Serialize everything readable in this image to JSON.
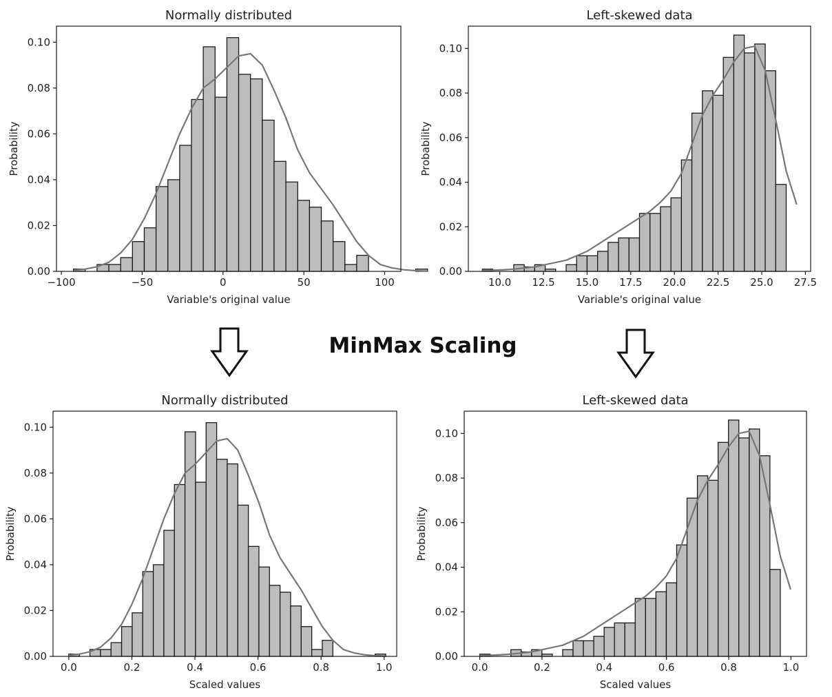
{
  "center_label": "MinMax Scaling",
  "colors": {
    "bar_fill": "#bdbdbd",
    "bar_edge": "#1a1a1a",
    "kde_line": "#777777",
    "axes": "#1a1a1a"
  },
  "chart_data": [
    {
      "type": "bar",
      "title": "Normally distributed",
      "xlabel": "Variable's original value",
      "ylabel": "Probability",
      "xlim": [
        -103,
        110
      ],
      "ylim": [
        0,
        0.107
      ],
      "xticks": [
        -100,
        -50,
        0,
        50,
        100
      ],
      "xtick_labels": [
        "−100",
        "−50",
        "0",
        "50",
        "100"
      ],
      "yticks": [
        0.0,
        0.02,
        0.04,
        0.06,
        0.08,
        0.1
      ],
      "ytick_labels": [
        "0.00",
        "0.02",
        "0.04",
        "0.06",
        "0.08",
        "0.10"
      ],
      "bin_start": -92.5,
      "bin_width": 7.3,
      "values": [
        0.001,
        0.0,
        0.003,
        0.003,
        0.006,
        0.013,
        0.019,
        0.037,
        0.04,
        0.055,
        0.075,
        0.098,
        0.076,
        0.102,
        0.086,
        0.084,
        0.066,
        0.048,
        0.039,
        0.031,
        0.028,
        0.022,
        0.013,
        0.003,
        0.007,
        0.0,
        0.0,
        0.0,
        0.0,
        0.001
      ],
      "kde": [
        0.0005,
        0.001,
        0.002,
        0.004,
        0.008,
        0.014,
        0.023,
        0.034,
        0.047,
        0.06,
        0.071,
        0.08,
        0.084,
        0.089,
        0.094,
        0.095,
        0.09,
        0.079,
        0.067,
        0.053,
        0.043,
        0.036,
        0.029,
        0.021,
        0.013,
        0.007,
        0.003,
        0.0015,
        0.0007,
        0.0003,
        0.0001
      ],
      "grid": false
    },
    {
      "type": "bar",
      "title": "Left-skewed data",
      "xlabel": "Variable's original value",
      "ylabel": "Probability",
      "xlim": [
        8.2,
        27.8
      ],
      "ylim": [
        0,
        0.11
      ],
      "xticks": [
        10.0,
        12.5,
        15.0,
        17.5,
        20.0,
        22.5,
        25.0,
        27.5
      ],
      "xtick_labels": [
        "10.0",
        "12.5",
        "15.0",
        "17.5",
        "20.0",
        "22.5",
        "25.0",
        "27.5"
      ],
      "yticks": [
        0.0,
        0.02,
        0.04,
        0.06,
        0.08,
        0.1
      ],
      "ytick_labels": [
        "0.00",
        "0.02",
        "0.04",
        "0.06",
        "0.08",
        "0.10"
      ],
      "bin_start": 9.0,
      "bin_width": 0.6,
      "values": [
        0.001,
        0.0,
        0.0,
        0.003,
        0.002,
        0.003,
        0.001,
        0.0,
        0.003,
        0.007,
        0.007,
        0.009,
        0.013,
        0.015,
        0.015,
        0.026,
        0.026,
        0.029,
        0.033,
        0.05,
        0.071,
        0.081,
        0.079,
        0.096,
        0.106,
        0.098,
        0.102,
        0.09,
        0.039,
        0.0
      ],
      "kde": [
        0.0003,
        0.0005,
        0.0007,
        0.001,
        0.0015,
        0.002,
        0.003,
        0.004,
        0.005,
        0.007,
        0.009,
        0.012,
        0.015,
        0.018,
        0.021,
        0.024,
        0.027,
        0.031,
        0.036,
        0.044,
        0.057,
        0.07,
        0.079,
        0.086,
        0.094,
        0.1,
        0.101,
        0.09,
        0.068,
        0.045,
        0.03
      ],
      "grid": false
    },
    {
      "type": "bar",
      "title": "Normally distributed",
      "xlabel": "Scaled values",
      "ylabel": "Probability",
      "xlim": [
        -0.05,
        1.04
      ],
      "ylim": [
        0,
        0.107
      ],
      "xticks": [
        0.0,
        0.2,
        0.4,
        0.6,
        0.8,
        1.0
      ],
      "xtick_labels": [
        "0.0",
        "0.2",
        "0.4",
        "0.6",
        "0.8",
        "1.0"
      ],
      "yticks": [
        0.0,
        0.02,
        0.04,
        0.06,
        0.08,
        0.1
      ],
      "ytick_labels": [
        "0.00",
        "0.02",
        "0.04",
        "0.06",
        "0.08",
        "0.10"
      ],
      "bin_start": 0.0,
      "bin_width": 0.0335,
      "values": [
        0.001,
        0.0,
        0.003,
        0.003,
        0.006,
        0.013,
        0.019,
        0.037,
        0.04,
        0.055,
        0.075,
        0.098,
        0.076,
        0.102,
        0.086,
        0.084,
        0.066,
        0.048,
        0.039,
        0.031,
        0.028,
        0.022,
        0.013,
        0.003,
        0.007,
        0.0,
        0.0,
        0.0,
        0.0,
        0.001
      ],
      "kde": [
        0.0005,
        0.001,
        0.002,
        0.004,
        0.008,
        0.014,
        0.023,
        0.034,
        0.047,
        0.06,
        0.071,
        0.08,
        0.084,
        0.089,
        0.094,
        0.095,
        0.09,
        0.079,
        0.067,
        0.053,
        0.043,
        0.036,
        0.029,
        0.021,
        0.013,
        0.007,
        0.003,
        0.0015,
        0.0007,
        0.0003,
        0.0001
      ],
      "grid": false
    },
    {
      "type": "bar",
      "title": "Left-skewed data",
      "xlabel": "Scaled values",
      "ylabel": "Probability",
      "xlim": [
        -0.05,
        1.05
      ],
      "ylim": [
        0,
        0.11
      ],
      "xticks": [
        0.0,
        0.2,
        0.4,
        0.6,
        0.8,
        1.0
      ],
      "xtick_labels": [
        "0.0",
        "0.2",
        "0.4",
        "0.6",
        "0.8",
        "1.0"
      ],
      "yticks": [
        0.0,
        0.02,
        0.04,
        0.06,
        0.08,
        0.1
      ],
      "ytick_labels": [
        "0.00",
        "0.02",
        "0.04",
        "0.06",
        "0.08",
        "0.10"
      ],
      "bin_start": 0.0,
      "bin_width": 0.0333,
      "values": [
        0.001,
        0.0,
        0.0,
        0.003,
        0.002,
        0.003,
        0.001,
        0.0,
        0.003,
        0.007,
        0.007,
        0.009,
        0.013,
        0.015,
        0.015,
        0.026,
        0.026,
        0.029,
        0.033,
        0.05,
        0.071,
        0.081,
        0.079,
        0.096,
        0.106,
        0.098,
        0.102,
        0.09,
        0.039,
        0.0
      ],
      "kde": [
        0.0003,
        0.0005,
        0.0007,
        0.001,
        0.0015,
        0.002,
        0.003,
        0.004,
        0.005,
        0.007,
        0.009,
        0.012,
        0.015,
        0.018,
        0.021,
        0.024,
        0.027,
        0.031,
        0.036,
        0.044,
        0.057,
        0.07,
        0.079,
        0.086,
        0.094,
        0.1,
        0.101,
        0.09,
        0.068,
        0.045,
        0.03
      ],
      "grid": false
    }
  ]
}
